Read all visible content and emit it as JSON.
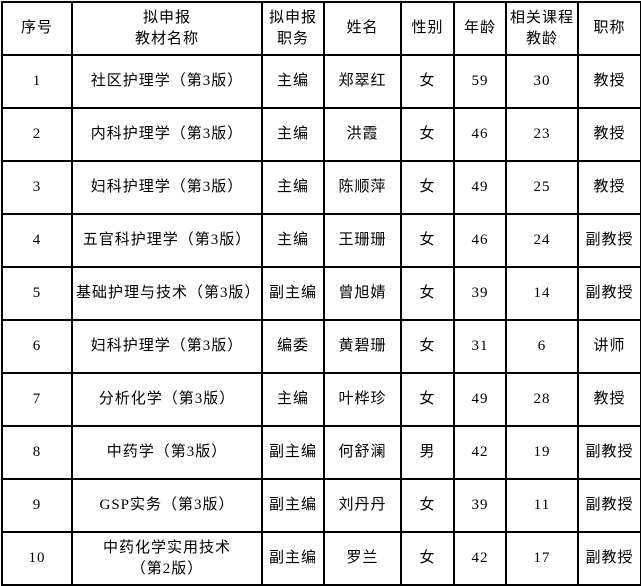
{
  "table": {
    "headers": [
      {
        "key": "no",
        "label": "序号"
      },
      {
        "key": "book",
        "label": "拟申报\n教材名称"
      },
      {
        "key": "role",
        "label": "拟申报\n职务"
      },
      {
        "key": "person",
        "label": "姓名"
      },
      {
        "key": "gender",
        "label": "性别"
      },
      {
        "key": "age",
        "label": "年龄"
      },
      {
        "key": "years",
        "label": "相关课程\n教龄"
      },
      {
        "key": "title",
        "label": "职称"
      }
    ],
    "rows": [
      {
        "no": "1",
        "book": "社区护理学（第3版）",
        "role": "主编",
        "person": "郑翠红",
        "gender": "女",
        "age": "59",
        "years": "30",
        "title": "教授"
      },
      {
        "no": "2",
        "book": "内科护理学（第3版）",
        "role": "主编",
        "person": "洪霞",
        "gender": "女",
        "age": "46",
        "years": "23",
        "title": "教授"
      },
      {
        "no": "3",
        "book": "妇科护理学（第3版）",
        "role": "主编",
        "person": "陈顺萍",
        "gender": "女",
        "age": "49",
        "years": "25",
        "title": "教授"
      },
      {
        "no": "4",
        "book": "五官科护理学（第3版）",
        "role": "主编",
        "person": "王珊珊",
        "gender": "女",
        "age": "46",
        "years": "24",
        "title": "副教授"
      },
      {
        "no": "5",
        "book": "基础护理与技术（第3版）",
        "role": "副主编",
        "person": "曾旭婧",
        "gender": "女",
        "age": "39",
        "years": "14",
        "title": "副教授"
      },
      {
        "no": "6",
        "book": "妇科护理学（第3版）",
        "role": "编委",
        "person": "黄碧珊",
        "gender": "女",
        "age": "31",
        "years": "6",
        "title": "讲师"
      },
      {
        "no": "7",
        "book": "分析化学（第3版）",
        "role": "主编",
        "person": "叶桦珍",
        "gender": "女",
        "age": "49",
        "years": "28",
        "title": "教授"
      },
      {
        "no": "8",
        "book": "中药学（第3版）",
        "role": "副主编",
        "person": "何舒澜",
        "gender": "男",
        "age": "42",
        "years": "19",
        "title": "副教授"
      },
      {
        "no": "9",
        "book": "GSP实务（第3版）",
        "role": "副主编",
        "person": "刘丹丹",
        "gender": "女",
        "age": "39",
        "years": "11",
        "title": "副教授"
      },
      {
        "no": "10",
        "book": "中药化学实用技术\n（第2版）",
        "role": "副主编",
        "person": "罗兰",
        "gender": "女",
        "age": "42",
        "years": "17",
        "title": "副教授"
      }
    ]
  }
}
